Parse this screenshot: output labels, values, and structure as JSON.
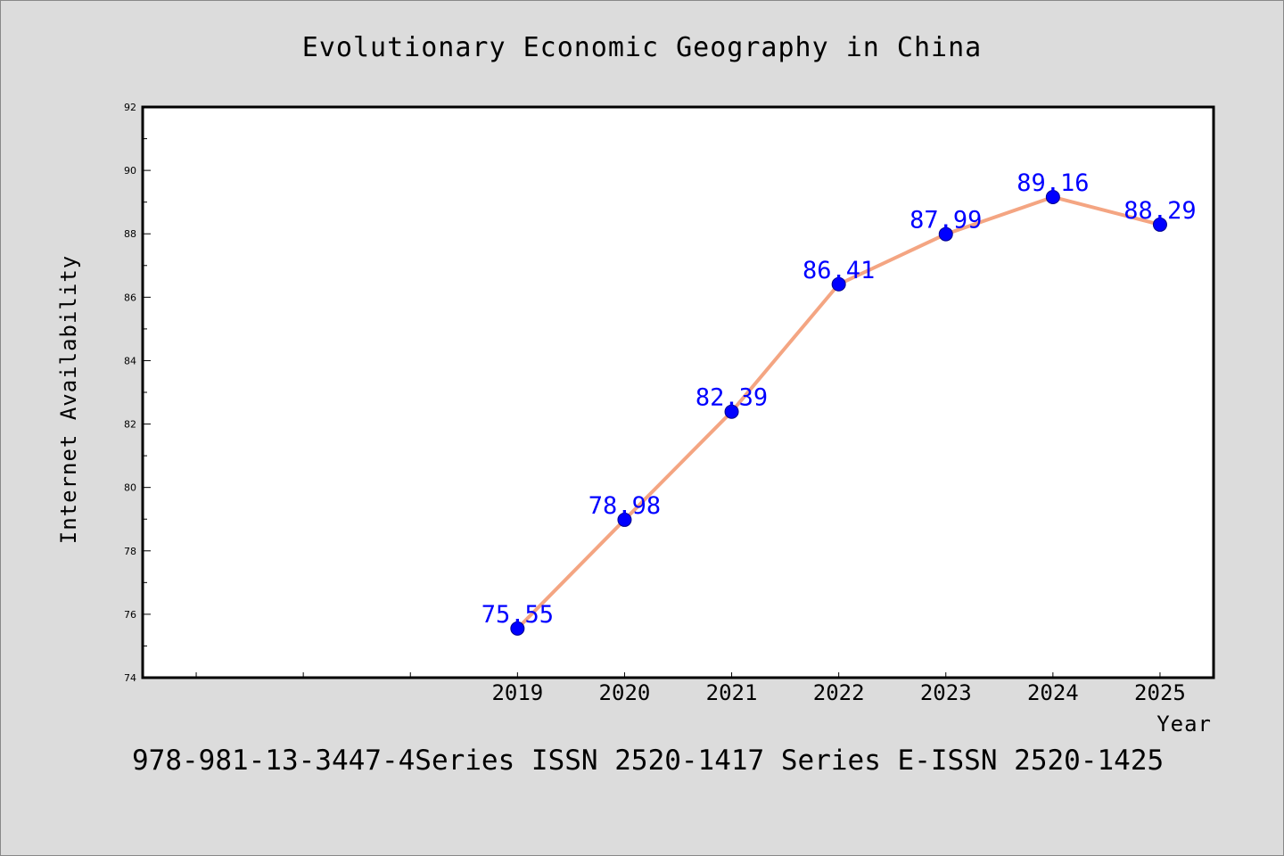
{
  "chart_data": {
    "type": "line",
    "title": "Evolutionary Economic Geography in China",
    "xlabel": "Year",
    "ylabel": "Internet Availability",
    "x": [
      "2019",
      "2020",
      "2021",
      "2022",
      "2023",
      "2024",
      "2025"
    ],
    "series": [
      {
        "values": [
          75.55,
          78.98,
          82.39,
          86.41,
          87.99,
          89.16,
          88.29
        ]
      }
    ],
    "data_labels": [
      "75.55",
      "78.98",
      "82.39",
      "86.41",
      "87.99",
      "89.16",
      "88.29"
    ],
    "ylim": [
      74,
      92
    ],
    "yticks": [
      74,
      76,
      78,
      80,
      82,
      84,
      86,
      88,
      90,
      92
    ],
    "ytick_labels": [
      "74",
      "76",
      "78",
      "80",
      "82",
      "84",
      "86",
      "88",
      "90",
      "92"
    ],
    "xlim": [
      2015.5,
      2025.5
    ],
    "grid": false,
    "legend": "none",
    "line_color": "#f4a582",
    "marker_color": "#0000ff",
    "label_color": "#0000ff",
    "background": "#dcdcdc",
    "plot_background": "#ffffff"
  },
  "footer_text": "978-981-13-3447-4Series ISSN 2520-1417 Series E-ISSN 2520-1425"
}
